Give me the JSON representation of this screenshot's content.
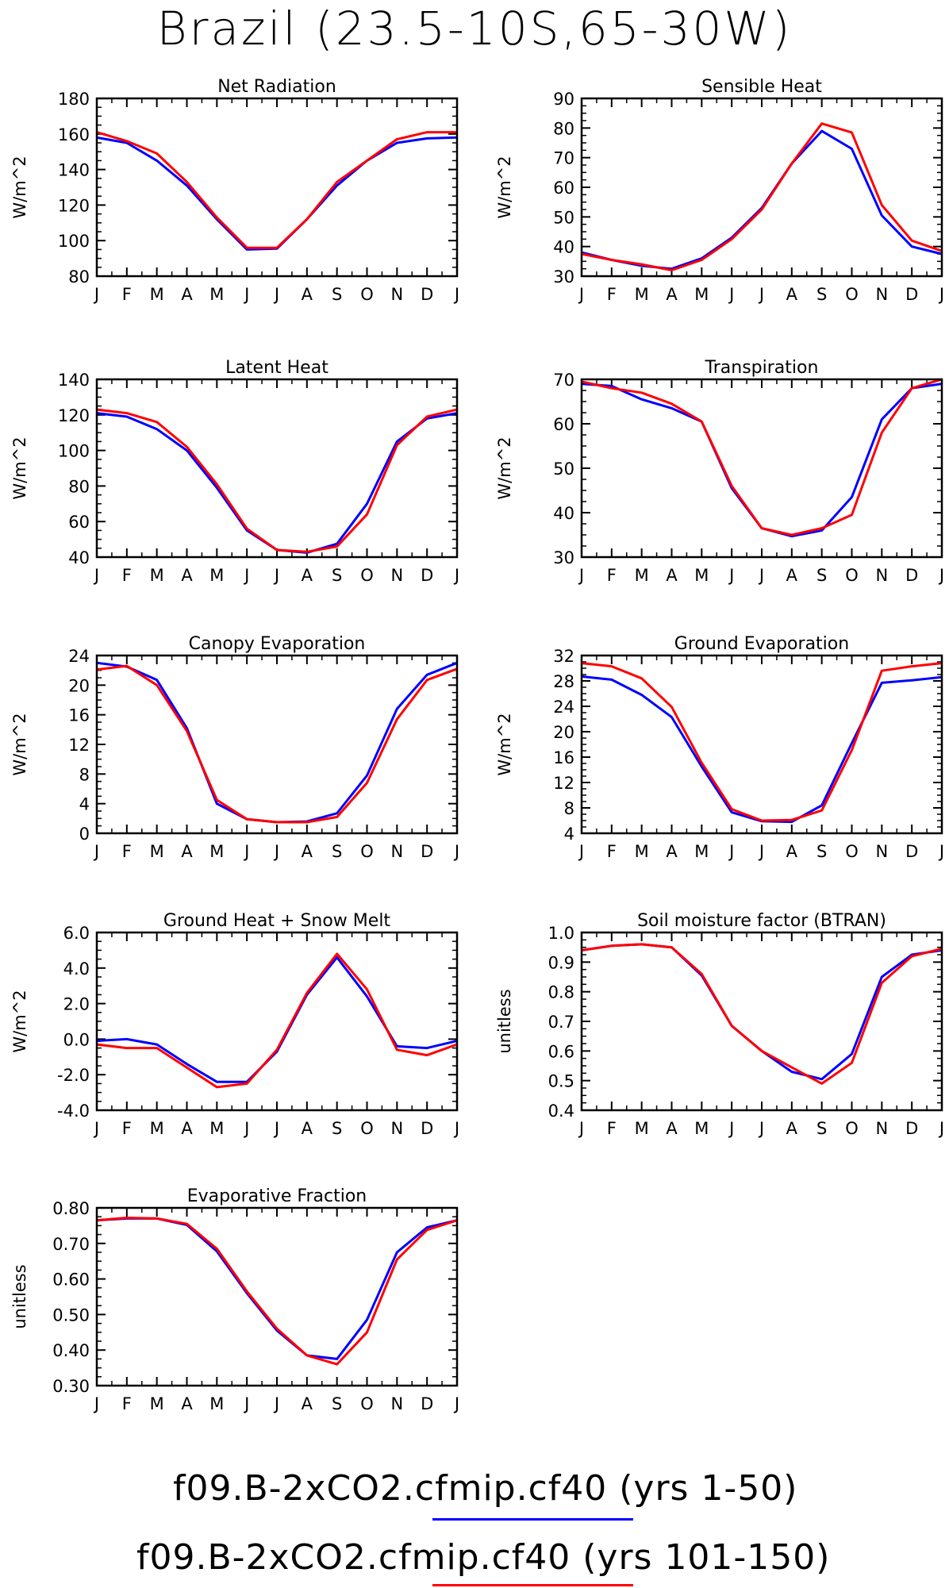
{
  "title": "Brazil (23.5-10S,65-30W)",
  "legend": [
    {
      "label": "f09.B-2xCO2.cfmip.cf40 (yrs 1-50)",
      "color": "#0000ff"
    },
    {
      "label": "f09.B-2xCO2.cfmip.cf40 (yrs 101-150)",
      "color": "#ff0000"
    }
  ],
  "colors": {
    "series_a": "#0000ff",
    "series_b": "#ff0000"
  },
  "chart_data": [
    {
      "type": "line",
      "title": "Net Radiation",
      "ylabel": "W/m^2",
      "x": [
        "J",
        "F",
        "M",
        "A",
        "M",
        "J",
        "J",
        "A",
        "S",
        "O",
        "N",
        "D",
        "J"
      ],
      "ylim": [
        80,
        180
      ],
      "yticks": [
        "80",
        "100",
        "120",
        "140",
        "160",
        "180"
      ],
      "series": [
        {
          "name": "f09.B-2xCO2.cfmip.cf40 (yrs 1-50)",
          "color": "#0000ff",
          "values": [
            158,
            155,
            145,
            131,
            112,
            95,
            95.5,
            112,
            131,
            145,
            155,
            157.5,
            158
          ]
        },
        {
          "name": "f09.B-2xCO2.cfmip.cf40 (yrs 101-150)",
          "color": "#ff0000",
          "values": [
            161,
            156,
            149,
            133,
            113,
            96,
            96,
            112,
            133,
            145,
            157,
            161,
            161
          ]
        }
      ]
    },
    {
      "type": "line",
      "title": "Sensible Heat",
      "ylabel": "W/m^2",
      "x": [
        "J",
        "F",
        "M",
        "A",
        "M",
        "J",
        "J",
        "A",
        "S",
        "O",
        "N",
        "D",
        "J"
      ],
      "ylim": [
        30,
        90
      ],
      "yticks": [
        "30",
        "40",
        "50",
        "60",
        "70",
        "80",
        "90"
      ],
      "series": [
        {
          "name": "f09.B-2xCO2.cfmip.cf40 (yrs 1-50)",
          "color": "#0000ff",
          "values": [
            38,
            35.5,
            33.5,
            32.5,
            36,
            43,
            53,
            68,
            79,
            73,
            50.5,
            40,
            37.5
          ]
        },
        {
          "name": "f09.B-2xCO2.cfmip.cf40 (yrs 101-150)",
          "color": "#ff0000",
          "values": [
            37.5,
            35.5,
            34,
            32,
            35.5,
            42.5,
            52.5,
            68,
            81.5,
            78.5,
            54,
            42,
            38.5
          ]
        }
      ]
    },
    {
      "type": "line",
      "title": "Latent Heat",
      "ylabel": "W/m^2",
      "x": [
        "J",
        "F",
        "M",
        "A",
        "M",
        "J",
        "J",
        "A",
        "S",
        "O",
        "N",
        "D",
        "J"
      ],
      "ylim": [
        40,
        140
      ],
      "yticks": [
        "40",
        "60",
        "80",
        "100",
        "120",
        "140"
      ],
      "series": [
        {
          "name": "f09.B-2xCO2.cfmip.cf40 (yrs 1-50)",
          "color": "#0000ff",
          "values": [
            121,
            119,
            112,
            100,
            79,
            55,
            44,
            42.5,
            47.5,
            70,
            105,
            118,
            121
          ]
        },
        {
          "name": "f09.B-2xCO2.cfmip.cf40 (yrs 101-150)",
          "color": "#ff0000",
          "values": [
            123,
            121,
            116,
            102,
            81,
            56,
            44,
            43,
            46,
            64,
            103,
            119,
            123
          ]
        }
      ]
    },
    {
      "type": "line",
      "title": "Transpiration",
      "ylabel": "W/m^2",
      "x": [
        "J",
        "F",
        "M",
        "A",
        "M",
        "J",
        "J",
        "A",
        "S",
        "O",
        "N",
        "D",
        "J"
      ],
      "ylim": [
        30,
        70
      ],
      "yticks": [
        "30",
        "40",
        "50",
        "60",
        "70"
      ],
      "series": [
        {
          "name": "f09.B-2xCO2.cfmip.cf40 (yrs 1-50)",
          "color": "#0000ff",
          "values": [
            69,
            68.5,
            65.5,
            63.5,
            60.5,
            45.5,
            36.5,
            34.7,
            36,
            43.5,
            61,
            68,
            69
          ]
        },
        {
          "name": "f09.B-2xCO2.cfmip.cf40 (yrs 101-150)",
          "color": "#ff0000",
          "values": [
            69.5,
            68,
            67,
            64.5,
            60.5,
            46,
            36.5,
            35,
            36.5,
            39.5,
            58,
            68,
            70
          ]
        }
      ]
    },
    {
      "type": "line",
      "title": "Canopy Evaporation",
      "ylabel": "W/m^2",
      "x": [
        "J",
        "F",
        "M",
        "A",
        "M",
        "J",
        "J",
        "A",
        "S",
        "O",
        "N",
        "D",
        "J"
      ],
      "ylim": [
        0,
        24
      ],
      "yticks": [
        "0",
        "4",
        "8",
        "12",
        "16",
        "20",
        "24"
      ],
      "series": [
        {
          "name": "f09.B-2xCO2.cfmip.cf40 (yrs 1-50)",
          "color": "#0000ff",
          "values": [
            23,
            22.5,
            20.7,
            14.2,
            4,
            1.9,
            1.5,
            1.6,
            2.7,
            7.8,
            16.8,
            21.4,
            23
          ]
        },
        {
          "name": "f09.B-2xCO2.cfmip.cf40 (yrs 101-150)",
          "color": "#ff0000",
          "values": [
            22.1,
            22.6,
            20,
            13.8,
            4.5,
            1.9,
            1.5,
            1.5,
            2.2,
            6.8,
            15.4,
            20.7,
            22.2
          ]
        }
      ]
    },
    {
      "type": "line",
      "title": "Ground Evaporation",
      "ylabel": "W/m^2",
      "x": [
        "J",
        "F",
        "M",
        "A",
        "M",
        "J",
        "J",
        "A",
        "S",
        "O",
        "N",
        "D",
        "J"
      ],
      "ylim": [
        4,
        32
      ],
      "yticks": [
        "4",
        "8",
        "12",
        "16",
        "20",
        "24",
        "28",
        "32"
      ],
      "series": [
        {
          "name": "f09.B-2xCO2.cfmip.cf40 (yrs 1-50)",
          "color": "#0000ff",
          "values": [
            28.7,
            28.2,
            25.8,
            22.3,
            14.5,
            7.3,
            5.9,
            5.8,
            8.4,
            18.2,
            27.7,
            28.1,
            28.6
          ]
        },
        {
          "name": "f09.B-2xCO2.cfmip.cf40 (yrs 101-150)",
          "color": "#ff0000",
          "values": [
            30.8,
            30.3,
            28.4,
            23.9,
            15.1,
            7.8,
            6,
            6.1,
            7.6,
            17.1,
            29.6,
            30.3,
            30.8
          ]
        }
      ]
    },
    {
      "type": "line",
      "title": "Ground Heat + Snow Melt",
      "ylabel": "W/m^2",
      "x": [
        "J",
        "F",
        "M",
        "A",
        "M",
        "J",
        "J",
        "A",
        "S",
        "O",
        "N",
        "D",
        "J"
      ],
      "ylim": [
        -4,
        6
      ],
      "yticks": [
        "-4.0",
        "-2.0",
        "0.0",
        "2.0",
        "4.0",
        "6.0"
      ],
      "series": [
        {
          "name": "f09.B-2xCO2.cfmip.cf40 (yrs 1-50)",
          "color": "#0000ff",
          "values": [
            -0.1,
            0,
            -0.3,
            -1.4,
            -2.4,
            -2.4,
            -0.7,
            2.5,
            4.6,
            2.4,
            -0.4,
            -0.5,
            -0.1
          ]
        },
        {
          "name": "f09.B-2xCO2.cfmip.cf40 (yrs 101-150)",
          "color": "#ff0000",
          "values": [
            -0.3,
            -0.5,
            -0.5,
            -1.6,
            -2.7,
            -2.5,
            -0.6,
            2.6,
            4.8,
            2.8,
            -0.6,
            -0.9,
            -0.3
          ]
        }
      ]
    },
    {
      "type": "line",
      "title": "Soil moisture factor (BTRAN)",
      "ylabel": "unitless",
      "x": [
        "J",
        "F",
        "M",
        "A",
        "M",
        "J",
        "J",
        "A",
        "S",
        "O",
        "N",
        "D",
        "J"
      ],
      "ylim": [
        0.4,
        1.0
      ],
      "yticks": [
        "0.4",
        "0.5",
        "0.6",
        "0.7",
        "0.8",
        "0.9",
        "1.0"
      ],
      "series": [
        {
          "name": "f09.B-2xCO2.cfmip.cf40 (yrs 1-50)",
          "color": "#0000ff",
          "values": [
            0.94,
            0.955,
            0.96,
            0.95,
            0.855,
            0.685,
            0.6,
            0.53,
            0.505,
            0.59,
            0.85,
            0.925,
            0.94
          ]
        },
        {
          "name": "f09.B-2xCO2.cfmip.cf40 (yrs 101-150)",
          "color": "#ff0000",
          "values": [
            0.94,
            0.955,
            0.96,
            0.95,
            0.86,
            0.685,
            0.6,
            0.545,
            0.49,
            0.56,
            0.83,
            0.92,
            0.945
          ]
        }
      ]
    },
    {
      "type": "line",
      "title": "Evaporative Fraction",
      "ylabel": "unitless",
      "x": [
        "J",
        "F",
        "M",
        "A",
        "M",
        "J",
        "J",
        "A",
        "S",
        "O",
        "N",
        "D",
        "J"
      ],
      "ylim": [
        0.3,
        0.8
      ],
      "yticks": [
        "0.30",
        "0.40",
        "0.50",
        "0.60",
        "0.70",
        "0.80"
      ],
      "series": [
        {
          "name": "f09.B-2xCO2.cfmip.cf40 (yrs 1-50)",
          "color": "#0000ff",
          "values": [
            0.765,
            0.77,
            0.77,
            0.752,
            0.678,
            0.56,
            0.455,
            0.385,
            0.375,
            0.485,
            0.675,
            0.745,
            0.765
          ]
        },
        {
          "name": "f09.B-2xCO2.cfmip.cf40 (yrs 101-150)",
          "color": "#ff0000",
          "values": [
            0.765,
            0.772,
            0.77,
            0.755,
            0.685,
            0.565,
            0.46,
            0.385,
            0.36,
            0.45,
            0.655,
            0.738,
            0.765
          ]
        }
      ]
    }
  ]
}
